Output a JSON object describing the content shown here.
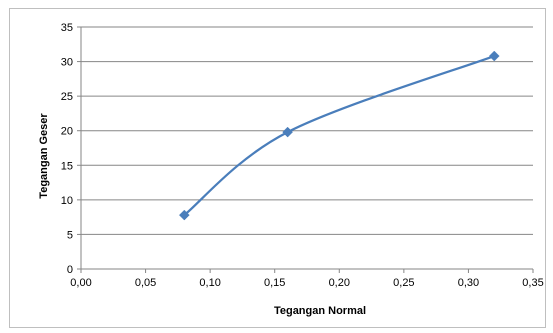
{
  "chart_data": {
    "type": "line",
    "title": "",
    "xlabel": "Tegangan Normal",
    "ylabel": "Tegangan Geser",
    "xlim": [
      0,
      0.35
    ],
    "ylim": [
      0,
      35
    ],
    "x_ticks": [
      "0,00",
      "0,05",
      "0,10",
      "0,15",
      "0,20",
      "0,25",
      "0,30",
      "0,35"
    ],
    "y_ticks": [
      "0",
      "5",
      "10",
      "15",
      "20",
      "25",
      "30",
      "35"
    ],
    "grid": "horizontal",
    "legend": "none",
    "smoothed": true,
    "marker": "diamond",
    "series": [
      {
        "x": [
          0.08,
          0.16,
          0.32
        ],
        "y": [
          7.8,
          19.8,
          30.8
        ],
        "color": "#4a7ebb"
      }
    ]
  }
}
